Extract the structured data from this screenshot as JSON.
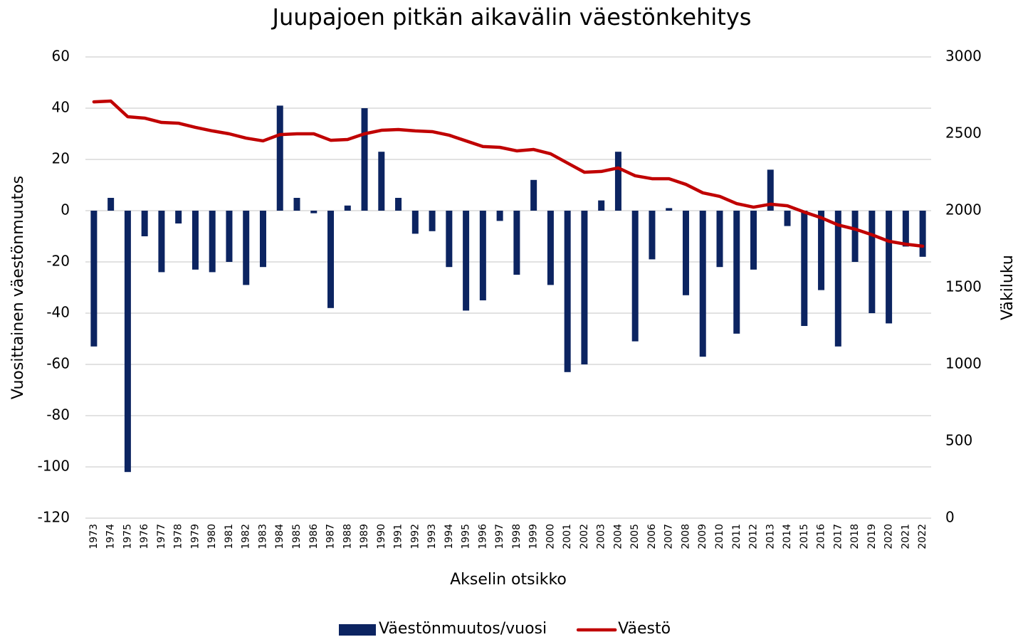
{
  "chart_data": {
    "type": "bar-line",
    "title": "Juupajoen pitkän aikavälin väestönkehitys",
    "xlabel": "Akselin otsikko",
    "ylabel": "Vuosittainen väestönmuutos",
    "y2label": "Väkiluku",
    "categories": [
      "1973",
      "1974",
      "1975",
      "1976",
      "1977",
      "1978",
      "1979",
      "1980",
      "1981",
      "1982",
      "1983",
      "1984",
      "1985",
      "1986",
      "1987",
      "1988",
      "1989",
      "1990",
      "1991",
      "1992",
      "1993",
      "1994",
      "1995",
      "1996",
      "1997",
      "1998",
      "1999",
      "2000",
      "2001",
      "2002",
      "2003",
      "2004",
      "2005",
      "2006",
      "2007",
      "2008",
      "2009",
      "2010",
      "2011",
      "2012",
      "2013",
      "2014",
      "2015",
      "2016",
      "2017",
      "2018",
      "2019",
      "2020",
      "2021",
      "2022"
    ],
    "series": [
      {
        "name": "Väestönmuutos/vuosi",
        "type": "bar",
        "color": "#0c2461",
        "values": [
          -53,
          5,
          -102,
          -10,
          -24,
          -5,
          -23,
          -24,
          -20,
          -29,
          -22,
          41,
          5,
          -1,
          -38,
          2,
          40,
          23,
          5,
          -9,
          -8,
          -22,
          -39,
          -35,
          -4,
          -25,
          12,
          -29,
          -63,
          -60,
          4,
          23,
          -51,
          -19,
          1,
          -33,
          -57,
          -22,
          -48,
          -23,
          16,
          -6,
          -45,
          -31,
          -53,
          -20,
          -40,
          -44,
          -14,
          -18
        ]
      },
      {
        "name": "Väestö",
        "type": "line",
        "axis": "y2",
        "color": "#c00000",
        "values": [
          2708,
          2713,
          2611,
          2602,
          2574,
          2569,
          2542,
          2519,
          2500,
          2472,
          2454,
          2495,
          2500,
          2500,
          2458,
          2463,
          2500,
          2523,
          2528,
          2519,
          2514,
          2491,
          2454,
          2417,
          2412,
          2389,
          2398,
          2370,
          2310,
          2250,
          2255,
          2278,
          2227,
          2208,
          2208,
          2171,
          2116,
          2093,
          2046,
          2023,
          2042,
          2032,
          1991,
          1954,
          1907,
          1880,
          1843,
          1801,
          1782,
          1769
        ]
      }
    ],
    "ylim": [
      -120,
      60
    ],
    "yticks": [
      -120,
      -100,
      -80,
      -60,
      -40,
      -20,
      0,
      20,
      40,
      60
    ],
    "y2lim": [
      0,
      3000
    ],
    "y2ticks": [
      0,
      500,
      1000,
      1500,
      2000,
      2500,
      3000
    ],
    "grid": true,
    "legend": "bottom"
  }
}
